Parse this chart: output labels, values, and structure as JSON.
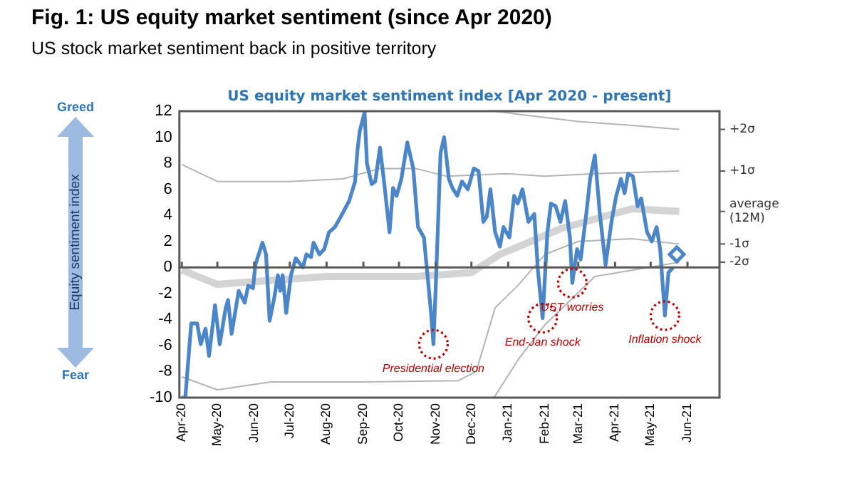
{
  "chart_data": {
    "type": "line",
    "title": "Fig. 1: US equity market sentiment (since Apr 2020)",
    "subtitle": "US stock market sentiment back in positive territory",
    "ylabel": "Equity sentiment index",
    "annotations": [
      "US equity market sentiment index [Apr 2020 - present]",
      "Greed",
      "Fear",
      {
        "text": "Presidential election",
        "x": "2020-10-30",
        "y": -5.9
      },
      {
        "text": "End-Jan shock",
        "x": "2021-01-30",
        "y": -3.9
      },
      {
        "text": "UST worries",
        "x": "2021-02-24",
        "y": -1.2
      },
      {
        "text": "Inflation shock",
        "x": "2021-05-13",
        "y": -3.7
      }
    ],
    "ylim": [
      -10,
      12
    ],
    "yticks": [
      -10,
      -8,
      -6,
      -4,
      -2,
      0,
      2,
      4,
      6,
      8,
      10,
      12
    ],
    "xlim": [
      "2020-03-30",
      "2021-06-28"
    ],
    "xticks": [
      {
        "value": "2020-04-01",
        "label": "Apr-20"
      },
      {
        "value": "2020-05-01",
        "label": "May-20"
      },
      {
        "value": "2020-06-01",
        "label": "Jun-20"
      },
      {
        "value": "2020-07-01",
        "label": "Jul-20"
      },
      {
        "value": "2020-08-01",
        "label": "Aug-20"
      },
      {
        "value": "2020-09-01",
        "label": "Sep-20"
      },
      {
        "value": "2020-10-01",
        "label": "Oct-20"
      },
      {
        "value": "2020-11-01",
        "label": "Nov-20"
      },
      {
        "value": "2020-12-01",
        "label": "Dec-20"
      },
      {
        "value": "2021-01-01",
        "label": "Jan-21"
      },
      {
        "value": "2021-02-01",
        "label": "Feb-21"
      },
      {
        "value": "2021-03-01",
        "label": "Mar-21"
      },
      {
        "value": "2021-04-01",
        "label": "Apr-21"
      },
      {
        "value": "2021-05-01",
        "label": "May-21"
      },
      {
        "value": "2021-06-01",
        "label": "Jun-21"
      }
    ],
    "grid": false,
    "legend": false,
    "marker": "none",
    "ref_lines": [
      {
        "axis": "y",
        "value": 0,
        "color": "#595959"
      }
    ],
    "series": [
      {
        "name": "+2σ",
        "color": "#b4b4b4",
        "x": [
          "2020-12-20",
          "2021-01-15",
          "2021-03-01",
          "2021-04-15",
          "2021-05-25"
        ],
        "values": [
          12,
          11.7,
          11.2,
          10.9,
          10.6
        ]
      },
      {
        "name": "+1σ",
        "color": "#b4b4b4",
        "x": [
          "2020-04-01",
          "2020-05-01",
          "2020-07-01",
          "2020-08-15",
          "2020-09-15",
          "2020-10-15",
          "2020-11-10",
          "2020-12-31",
          "2021-02-01",
          "2021-03-15",
          "2021-05-25"
        ],
        "values": [
          7.9,
          6.6,
          6.6,
          6.8,
          7.6,
          7.6,
          7.0,
          7.2,
          7.0,
          7.2,
          7.4
        ]
      },
      {
        "name": "average (12M)",
        "color": "#d4d4d4",
        "x": [
          "2020-04-01",
          "2020-05-01",
          "2020-06-15",
          "2020-08-01",
          "2020-10-15",
          "2020-12-01",
          "2020-12-25",
          "2021-01-15",
          "2021-02-15",
          "2021-04-15",
          "2021-05-25"
        ],
        "values": [
          -0.2,
          -1.3,
          -1.0,
          -0.7,
          -0.7,
          -0.4,
          1.0,
          1.8,
          3.0,
          4.5,
          4.3
        ]
      },
      {
        "name": "-1σ",
        "color": "#b4b4b4",
        "x": [
          "2020-04-01",
          "2020-05-01",
          "2020-06-15",
          "2020-09-01",
          "2020-11-20",
          "2020-12-05",
          "2020-12-21",
          "2021-01-09",
          "2021-02-01",
          "2021-03-01",
          "2021-04-15",
          "2021-05-25"
        ],
        "values": [
          -8.4,
          -9.4,
          -8.8,
          -8.8,
          -8.7,
          -8.0,
          -3.1,
          -1.4,
          1.0,
          2.0,
          2.2,
          1.8
        ]
      },
      {
        "name": "-2σ",
        "color": "#b4b4b4",
        "x": [
          "2020-12-20",
          "2021-01-10",
          "2021-02-01",
          "2021-03-15",
          "2021-05-25"
        ],
        "values": [
          -10,
          -7,
          -4.4,
          -0.7,
          0.4
        ]
      },
      {
        "color": "#4a86c8",
        "x": [
          "2020-04-01",
          "2020-04-04",
          "2020-04-09",
          "2020-04-14",
          "2020-04-17",
          "2020-04-21",
          "2020-04-24",
          "2020-04-29",
          "2020-05-03",
          "2020-05-08",
          "2020-05-10",
          "2020-05-13",
          "2020-05-19",
          "2020-05-24",
          "2020-05-27",
          "2020-05-31",
          "2020-06-02",
          "2020-06-08",
          "2020-06-11",
          "2020-06-14",
          "2020-06-18",
          "2020-06-21",
          "2020-06-23",
          "2020-06-25",
          "2020-06-28",
          "2020-07-02",
          "2020-07-06",
          "2020-07-12",
          "2020-07-15",
          "2020-07-19",
          "2020-07-21",
          "2020-07-26",
          "2020-07-30",
          "2020-08-03",
          "2020-08-08",
          "2020-08-13",
          "2020-08-20",
          "2020-08-25",
          "2020-08-27",
          "2020-08-29",
          "2020-09-02",
          "2020-09-04",
          "2020-09-08",
          "2020-09-11",
          "2020-09-15",
          "2020-09-19",
          "2020-09-23",
          "2020-09-26",
          "2020-09-29",
          "2020-10-03",
          "2020-10-08",
          "2020-10-13",
          "2020-10-17",
          "2020-10-22",
          "2020-10-25",
          "2020-10-28",
          "2020-10-30",
          "2020-11-01",
          "2020-11-05",
          "2020-11-08",
          "2020-11-12",
          "2020-11-15",
          "2020-11-19",
          "2020-11-23",
          "2020-11-28",
          "2020-12-03",
          "2020-12-07",
          "2020-12-11",
          "2020-12-14",
          "2020-12-17",
          "2020-12-21",
          "2020-12-25",
          "2020-12-28",
          "2021-01-02",
          "2021-01-06",
          "2021-01-09",
          "2021-01-13",
          "2021-01-18",
          "2021-01-23",
          "2021-01-26",
          "2021-01-30",
          "2021-02-03",
          "2021-02-06",
          "2021-02-10",
          "2021-02-14",
          "2021-02-18",
          "2021-02-22",
          "2021-02-24",
          "2021-02-28",
          "2021-03-03",
          "2021-03-08",
          "2021-03-11",
          "2021-03-15",
          "2021-03-19",
          "2021-03-24",
          "2021-03-29",
          "2021-04-02",
          "2021-04-06",
          "2021-04-09",
          "2021-04-12",
          "2021-04-16",
          "2021-04-20",
          "2021-04-23",
          "2021-04-28",
          "2021-05-02",
          "2021-05-06",
          "2021-05-09",
          "2021-05-13",
          "2021-05-16",
          "2021-05-20"
        ],
        "values": [
          -10,
          -10,
          -4.3,
          -4.3,
          -5.9,
          -4.7,
          -6.8,
          -2.9,
          -5.9,
          -3.1,
          -2.5,
          -5.1,
          -1.8,
          -2.7,
          -1.4,
          -1.6,
          0.2,
          1.9,
          1.0,
          -4.1,
          -2.3,
          -0.6,
          -1.8,
          -0.6,
          -3.5,
          -0.6,
          0.7,
          0,
          1.0,
          0.8,
          1.9,
          1.0,
          1.4,
          2.7,
          3.1,
          3.9,
          5.1,
          6.6,
          9.0,
          10.5,
          11.9,
          8.0,
          6.4,
          6.6,
          9.2,
          6.1,
          2.7,
          6.1,
          5.5,
          6.8,
          9.6,
          7.6,
          3.1,
          2.3,
          -0.6,
          -3.5,
          -5.9,
          -1.4,
          8.8,
          10.0,
          6.8,
          6.1,
          5.5,
          6.6,
          6.0,
          7.6,
          7.4,
          3.5,
          3.9,
          6.0,
          2.7,
          1.6,
          3.1,
          2.3,
          5.5,
          4.9,
          6.0,
          3.5,
          4.1,
          -0.2,
          -3.9,
          2.7,
          4.9,
          4.7,
          3.5,
          5.1,
          2.3,
          -1.2,
          1.4,
          0.6,
          4.3,
          6.8,
          8.6,
          4.3,
          0.2,
          3.5,
          5.5,
          6.8,
          5.7,
          7.2,
          7.0,
          4.7,
          5.3,
          2.7,
          2.0,
          3.1,
          1.4,
          -3.7,
          -0.4,
          0
        ]
      },
      {
        "type": "scatter",
        "marker": "diamond",
        "color": "#4a86c8",
        "x": [
          "2021-05-23"
        ],
        "values": [
          1.0
        ]
      }
    ]
  }
}
